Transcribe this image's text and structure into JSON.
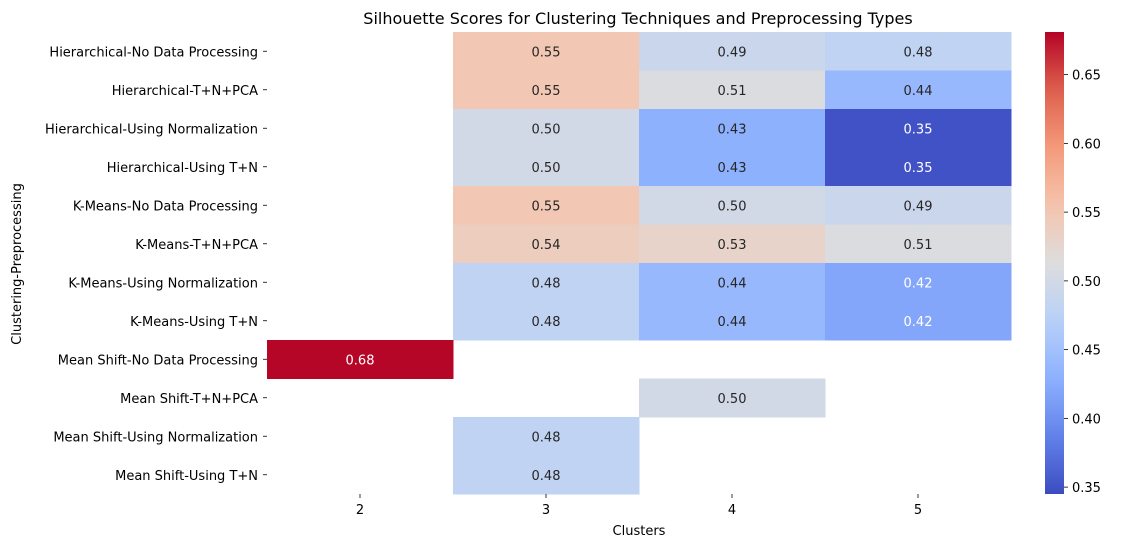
{
  "chart_data": {
    "type": "heatmap",
    "title": "Silhouette Scores for Clustering Techniques and Preprocessing Types",
    "xlabel": "Clusters",
    "ylabel": "Clustering-Preprocessing",
    "x_categories": [
      "2",
      "3",
      "4",
      "5"
    ],
    "y_categories": [
      "Hierarchical-No Data Processing",
      "Hierarchical-T+N+PCA",
      "Hierarchical-Using Normalization",
      "Hierarchical-Using T+N",
      "K-Means-No Data Processing",
      "K-Means-T+N+PCA",
      "K-Means-Using Normalization",
      "K-Means-Using T+N",
      "Mean Shift-No Data Processing",
      "Mean Shift-T+N+PCA",
      "Mean Shift-Using Normalization",
      "Mean Shift-Using T+N"
    ],
    "values": [
      [
        null,
        0.55,
        0.49,
        0.48
      ],
      [
        null,
        0.55,
        0.51,
        0.44
      ],
      [
        null,
        0.5,
        0.43,
        0.35
      ],
      [
        null,
        0.5,
        0.43,
        0.35
      ],
      [
        null,
        0.55,
        0.5,
        0.49
      ],
      [
        null,
        0.54,
        0.53,
        0.51
      ],
      [
        null,
        0.48,
        0.44,
        0.42
      ],
      [
        null,
        0.48,
        0.44,
        0.42
      ],
      [
        0.68,
        null,
        null,
        null
      ],
      [
        null,
        null,
        0.5,
        null
      ],
      [
        null,
        0.48,
        null,
        null
      ],
      [
        null,
        0.48,
        null,
        null
      ]
    ],
    "value_format": "0.00",
    "colormap": "coolwarm",
    "vmin": 0.345,
    "vmax": 0.681,
    "colorbar_ticks": [
      "0.35",
      "0.40",
      "0.45",
      "0.50",
      "0.55",
      "0.60",
      "0.65"
    ]
  }
}
